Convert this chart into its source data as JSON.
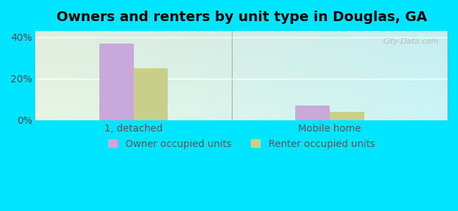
{
  "title": "Owners and renters by unit type in Douglas, GA",
  "categories": [
    "1, detached",
    "Mobile home"
  ],
  "owner_values": [
    37,
    7
  ],
  "renter_values": [
    25,
    4
  ],
  "owner_color": "#c9a8dc",
  "renter_color": "#c8cf8a",
  "background_outer": "#00e5ff",
  "background_inner_left": "#e8f5e2",
  "background_inner_right": "#d0f5f0",
  "ylabel_ticks": [
    "0%",
    "20%",
    "40%"
  ],
  "ytick_vals": [
    0,
    20,
    40
  ],
  "ylim": [
    0,
    43
  ],
  "bar_width": 0.35,
  "group_positions": [
    1,
    3
  ],
  "legend_labels": [
    "Owner occupied units",
    "Renter occupied units"
  ],
  "watermark": "City-Data.com",
  "title_fontsize": 14,
  "tick_fontsize": 10,
  "legend_fontsize": 10
}
